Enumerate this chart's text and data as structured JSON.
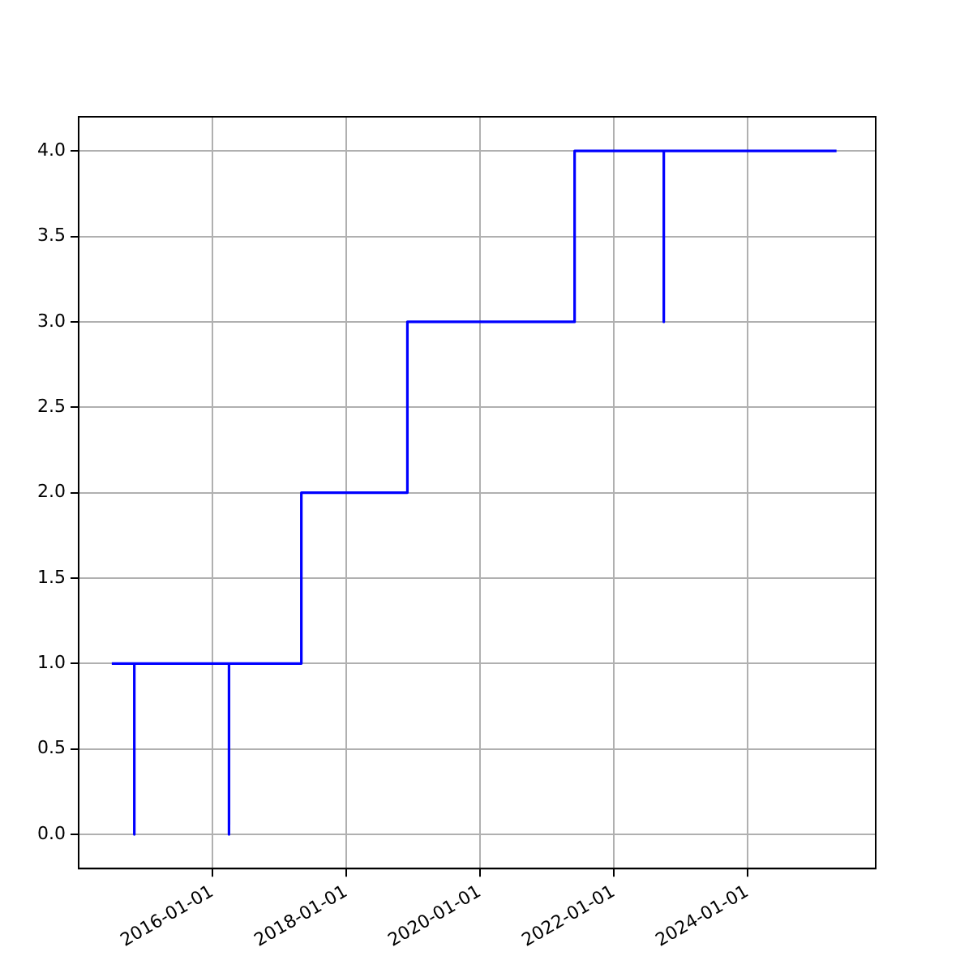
{
  "chart_data": {
    "type": "step",
    "x": [
      "2014-07",
      "2014-11",
      "2014-11",
      "2016-04",
      "2016-04",
      "2017-05",
      "2018-12",
      "2021-06",
      "2022-10",
      "2022-10",
      "2025-05"
    ],
    "series": [
      {
        "color": "#0000ff",
        "values": [
          1,
          0,
          1,
          0,
          1,
          2,
          3,
          4,
          3,
          4,
          4
        ]
      }
    ],
    "xlim": [
      "2014-01",
      "2025-12"
    ],
    "xticks": [
      "2016-01-01",
      "2018-01-01",
      "2020-01-01",
      "2022-01-01",
      "2024-01-01"
    ],
    "ylim": [
      -0.2,
      4.2
    ],
    "yticks": [
      {
        "value": 0,
        "label": "0.0"
      },
      {
        "value": 0.5,
        "label": "0.5"
      },
      {
        "value": 1,
        "label": "1.0"
      },
      {
        "value": 1.5,
        "label": "1.5"
      },
      {
        "value": 2,
        "label": "2.0"
      },
      {
        "value": 2.5,
        "label": "2.5"
      },
      {
        "value": 3,
        "label": "3.0"
      },
      {
        "value": 3.5,
        "label": "3.5"
      },
      {
        "value": 4,
        "label": "4.0"
      }
    ],
    "grid": true,
    "legend": false
  }
}
